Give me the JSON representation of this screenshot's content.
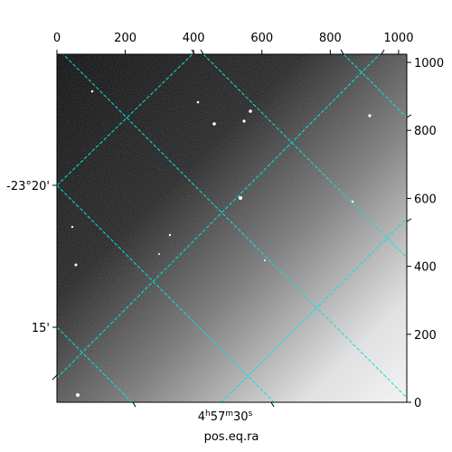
{
  "chart_data": {
    "type": "image",
    "xlabel": "pos.eq.ra",
    "xlim": [
      0,
      1024
    ],
    "ylim": [
      0,
      1024
    ],
    "xticks": [
      0,
      200,
      400,
      600,
      800,
      1000
    ],
    "yticks": [
      0,
      200,
      400,
      600,
      800,
      1000
    ],
    "dec_labels": [
      "-23°20'",
      "15'"
    ],
    "ra_label": [
      "4",
      "h",
      "57",
      "m",
      "30",
      "s"
    ]
  }
}
